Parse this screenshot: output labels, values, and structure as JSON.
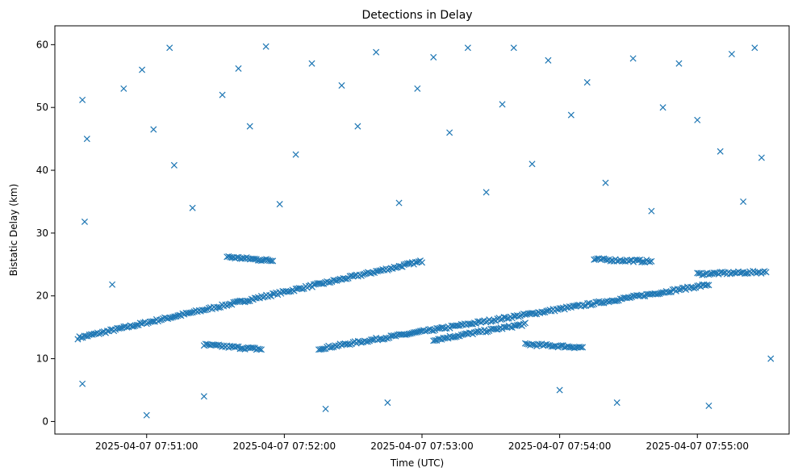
{
  "chart_data": {
    "type": "scatter",
    "title": "Detections in Delay",
    "xlabel": "Time (UTC)",
    "ylabel": "Bistatic Delay (km)",
    "x_tick_labels": [
      "2025-04-07 07:51:00",
      "2025-04-07 07:52:00",
      "2025-04-07 07:53:00",
      "2025-04-07 07:54:00",
      "2025-04-07 07:55:00"
    ],
    "y_ticks": [
      0,
      10,
      20,
      30,
      40,
      50,
      60
    ],
    "xlim": [
      "2025-04-07 07:50:20",
      "2025-04-07 07:55:40"
    ],
    "ylim": [
      -2,
      63
    ],
    "grid": false,
    "marker": "x",
    "color": "#1f77b4",
    "series": [
      {
        "points_description": "dense linear tracks plus scattered clutter",
        "tracks": [
          {
            "x_start": "2025-04-07 07:50:30",
            "x_end": "2025-04-07 07:53:00",
            "y_start": 13.3,
            "y_end": 25.5
          },
          {
            "x_start": "2025-04-07 07:52:15",
            "x_end": "2025-04-07 07:55:05",
            "y_start": 11.6,
            "y_end": 21.8
          },
          {
            "x_start": "2025-04-07 07:51:25",
            "x_end": "2025-04-07 07:51:50",
            "y_start": 12.2,
            "y_end": 11.5
          },
          {
            "x_start": "2025-04-07 07:51:35",
            "x_end": "2025-04-07 07:51:55",
            "y_start": 26.2,
            "y_end": 25.6
          },
          {
            "x_start": "2025-04-07 07:53:05",
            "x_end": "2025-04-07 07:53:45",
            "y_start": 13.0,
            "y_end": 15.5
          },
          {
            "x_start": "2025-04-07 07:53:45",
            "x_end": "2025-04-07 07:54:10",
            "y_start": 12.3,
            "y_end": 11.8
          },
          {
            "x_start": "2025-04-07 07:54:15",
            "x_end": "2025-04-07 07:54:40",
            "y_start": 25.8,
            "y_end": 25.5
          },
          {
            "x_start": "2025-04-07 07:55:00",
            "x_end": "2025-04-07 07:55:30",
            "y_start": 23.5,
            "y_end": 23.8
          }
        ],
        "clutter_points": [
          {
            "x": "2025-04-07 07:50:32",
            "y": 51.2
          },
          {
            "x": "2025-04-07 07:50:34",
            "y": 45.0
          },
          {
            "x": "2025-04-07 07:50:33",
            "y": 31.8
          },
          {
            "x": "2025-04-07 07:50:32",
            "y": 6.0
          },
          {
            "x": "2025-04-07 07:50:45",
            "y": 21.8
          },
          {
            "x": "2025-04-07 07:50:50",
            "y": 53.0
          },
          {
            "x": "2025-04-07 07:50:58",
            "y": 56.0
          },
          {
            "x": "2025-04-07 07:51:00",
            "y": 1.0
          },
          {
            "x": "2025-04-07 07:51:03",
            "y": 46.5
          },
          {
            "x": "2025-04-07 07:51:10",
            "y": 59.5
          },
          {
            "x": "2025-04-07 07:51:12",
            "y": 40.8
          },
          {
            "x": "2025-04-07 07:51:20",
            "y": 34.0
          },
          {
            "x": "2025-04-07 07:51:25",
            "y": 4.0
          },
          {
            "x": "2025-04-07 07:51:33",
            "y": 52.0
          },
          {
            "x": "2025-04-07 07:51:40",
            "y": 56.2
          },
          {
            "x": "2025-04-07 07:51:45",
            "y": 47.0
          },
          {
            "x": "2025-04-07 07:51:52",
            "y": 59.7
          },
          {
            "x": "2025-04-07 07:51:58",
            "y": 34.6
          },
          {
            "x": "2025-04-07 07:52:05",
            "y": 42.5
          },
          {
            "x": "2025-04-07 07:52:12",
            "y": 57.0
          },
          {
            "x": "2025-04-07 07:52:18",
            "y": 2.0
          },
          {
            "x": "2025-04-07 07:52:25",
            "y": 53.5
          },
          {
            "x": "2025-04-07 07:52:32",
            "y": 47.0
          },
          {
            "x": "2025-04-07 07:52:40",
            "y": 58.8
          },
          {
            "x": "2025-04-07 07:52:45",
            "y": 3.0
          },
          {
            "x": "2025-04-07 07:52:50",
            "y": 34.8
          },
          {
            "x": "2025-04-07 07:52:58",
            "y": 53.0
          },
          {
            "x": "2025-04-07 07:53:05",
            "y": 58.0
          },
          {
            "x": "2025-04-07 07:53:12",
            "y": 46.0
          },
          {
            "x": "2025-04-07 07:53:20",
            "y": 59.5
          },
          {
            "x": "2025-04-07 07:53:28",
            "y": 36.5
          },
          {
            "x": "2025-04-07 07:53:35",
            "y": 50.5
          },
          {
            "x": "2025-04-07 07:53:40",
            "y": 59.5
          },
          {
            "x": "2025-04-07 07:53:48",
            "y": 41.0
          },
          {
            "x": "2025-04-07 07:53:55",
            "y": 57.5
          },
          {
            "x": "2025-04-07 07:54:00",
            "y": 5.0
          },
          {
            "x": "2025-04-07 07:54:05",
            "y": 48.8
          },
          {
            "x": "2025-04-07 07:54:12",
            "y": 54.0
          },
          {
            "x": "2025-04-07 07:54:20",
            "y": 38.0
          },
          {
            "x": "2025-04-07 07:54:25",
            "y": 3.0
          },
          {
            "x": "2025-04-07 07:54:32",
            "y": 57.8
          },
          {
            "x": "2025-04-07 07:54:40",
            "y": 33.5
          },
          {
            "x": "2025-04-07 07:54:45",
            "y": 50.0
          },
          {
            "x": "2025-04-07 07:54:52",
            "y": 57.0
          },
          {
            "x": "2025-04-07 07:55:00",
            "y": 48.0
          },
          {
            "x": "2025-04-07 07:55:05",
            "y": 2.5
          },
          {
            "x": "2025-04-07 07:55:10",
            "y": 43.0
          },
          {
            "x": "2025-04-07 07:55:15",
            "y": 58.5
          },
          {
            "x": "2025-04-07 07:55:20",
            "y": 35.0
          },
          {
            "x": "2025-04-07 07:55:25",
            "y": 59.5
          },
          {
            "x": "2025-04-07 07:55:28",
            "y": 42.0
          },
          {
            "x": "2025-04-07 07:55:32",
            "y": 10.0
          }
        ]
      }
    ]
  }
}
